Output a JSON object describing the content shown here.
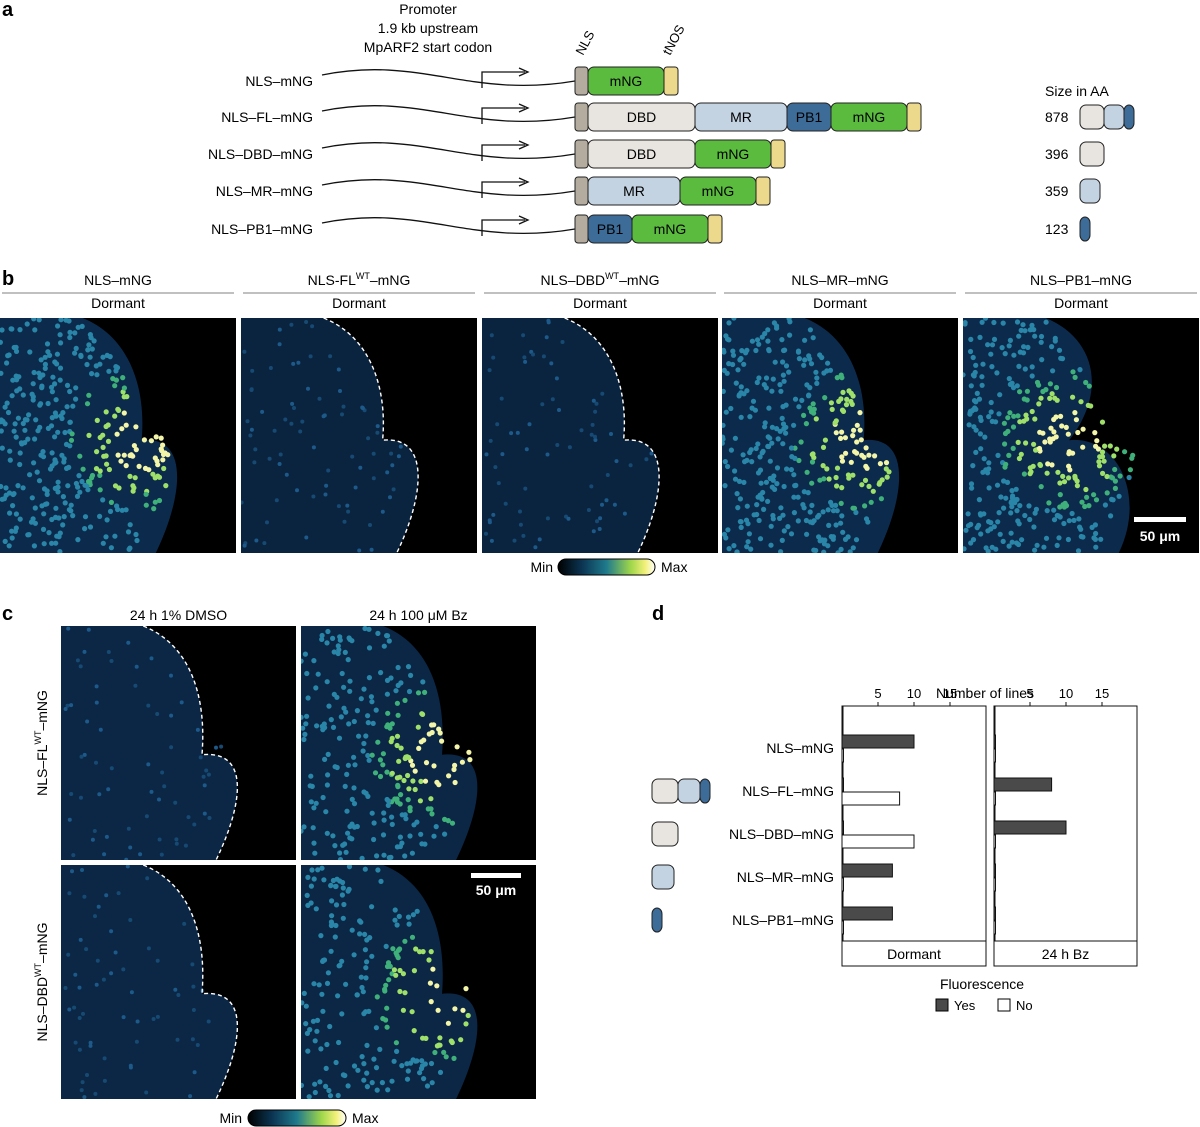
{
  "panel_labels": {
    "a": "a",
    "b": "b",
    "c": "c",
    "d": "d"
  },
  "panel_a": {
    "promoter_lines": [
      "Promoter",
      "1.9 kb upstream",
      "MpARF2 start codon"
    ],
    "nls_label": "NLS",
    "tnos_label": "tNOS",
    "size_header": "Size in AA",
    "constructs": [
      {
        "name": "NLS–mNG",
        "domains": [
          "mNG"
        ],
        "size": ""
      },
      {
        "name": "NLS–FL–mNG",
        "domains": [
          "DBD",
          "MR",
          "PB1",
          "mNG"
        ],
        "size": "878"
      },
      {
        "name": "NLS–DBD–mNG",
        "domains": [
          "DBD",
          "mNG"
        ],
        "size": "396"
      },
      {
        "name": "NLS–MR–mNG",
        "domains": [
          "MR",
          "mNG"
        ],
        "size": "359"
      },
      {
        "name": "NLS–PB1–mNG",
        "domains": [
          "PB1",
          "mNG"
        ],
        "size": "123"
      }
    ],
    "colors": {
      "NLS": "#b3ac9f",
      "DBD": "#e8e4df",
      "MR": "#c4d3e2",
      "PB1": "#3d6c99",
      "mNG": "#5bbb3f",
      "tNOS": "#ecd98b"
    }
  },
  "panel_b": {
    "columns": [
      {
        "base": "NLS–mNG",
        "sup": "",
        "after": "",
        "condition": "Dormant"
      },
      {
        "base": "NLS-FL",
        "sup": "WT",
        "after": "–mNG",
        "condition": "Dormant"
      },
      {
        "base": "NLS–DBD",
        "sup": "WT",
        "after": "–mNG",
        "condition": "Dormant"
      },
      {
        "base": "NLS–MR–mNG",
        "sup": "",
        "after": "",
        "condition": "Dormant"
      },
      {
        "base": "NLS–PB1–mNG",
        "sup": "",
        "after": "",
        "condition": "Dormant"
      }
    ],
    "scale_bar": "50 μm",
    "colorbar": {
      "min": "Min",
      "max": "Max"
    }
  },
  "panel_c": {
    "columns": [
      "24 h 1% DMSO",
      "24 h 100 μM Bz"
    ],
    "rows": [
      {
        "base": "NLS–FL",
        "sup": "WT",
        "after": "–mNG"
      },
      {
        "base": "NLS–DBD",
        "sup": "WT",
        "after": "–mNG"
      }
    ],
    "scale_bar": "50 μm",
    "colorbar": {
      "min": "Min",
      "max": "Max"
    }
  },
  "chart_data": {
    "type": "bar",
    "orientation": "horizontal",
    "xlabel": "Number of lines",
    "xticks": [
      5,
      10,
      15
    ],
    "xlim": [
      0,
      20
    ],
    "categories": [
      "NLS–mNG",
      "NLS–FL–mNG",
      "NLS–DBD–mNG",
      "NLS–MR–mNG",
      "NLS–PB1–mNG"
    ],
    "facets": [
      {
        "name": "Dormant",
        "series": [
          {
            "name": "Yes",
            "values": [
              10,
              0,
              0,
              7,
              7
            ]
          },
          {
            "name": "No",
            "values": [
              0,
              8,
              10,
              0,
              0
            ]
          }
        ]
      },
      {
        "name": "24 h Bz",
        "series": [
          {
            "name": "Yes",
            "values": [
              0,
              8,
              10,
              0,
              0
            ]
          },
          {
            "name": "No",
            "values": [
              0,
              0,
              0,
              0,
              0
            ]
          }
        ]
      }
    ],
    "legend": {
      "title": "Fluorescence",
      "entries": [
        "Yes",
        "No"
      ],
      "placement": "bottom"
    },
    "colors": {
      "Yes": "#4a4a4a",
      "No": "#ffffff"
    }
  }
}
